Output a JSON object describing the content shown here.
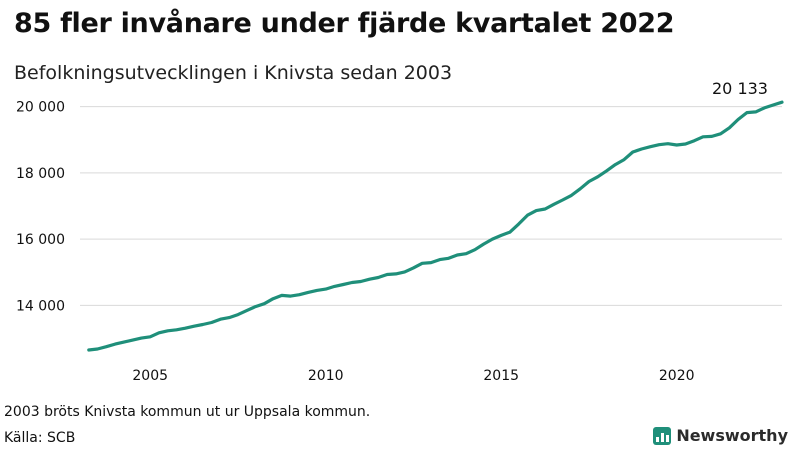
{
  "header": {
    "title": "85 fler invånare under fjärde kvartalet 2022",
    "subtitle": "Befolkningsutvecklingen i Knivsta sedan 2003"
  },
  "footer": {
    "note": "2003 bröts Knivsta kommun ut ur Uppsala kommun.",
    "source": "Källa: SCB",
    "brand": "Newsworthy"
  },
  "colors": {
    "line": "#1f8f7a",
    "grid": "#d9d9d9",
    "text": "#111111"
  },
  "chart_data": {
    "type": "line",
    "title": "85 fler invånare under fjärde kvartalet 2022",
    "subtitle": "Befolkningsutvecklingen i Knivsta sedan 2003",
    "xlabel": "",
    "ylabel": "",
    "xlim": [
      2003.0,
      2023.0
    ],
    "ylim": [
      12500,
      20200
    ],
    "grid": "horizontal",
    "legend": "none",
    "x_ticks": [
      2005,
      2010,
      2015,
      2020
    ],
    "x_tick_labels": [
      "2005",
      "2010",
      "2015",
      "2020"
    ],
    "y_ticks": [
      14000,
      16000,
      18000,
      20000
    ],
    "y_tick_labels": [
      "14 000",
      "16 000",
      "18 000",
      "20 000"
    ],
    "end_label": "20 133",
    "series": [
      {
        "x": [
          2003.25,
          2003.5,
          2003.75,
          2004.0,
          2004.25,
          2004.5,
          2004.75,
          2005.0,
          2005.25,
          2005.5,
          2005.75,
          2006.0,
          2006.25,
          2006.5,
          2006.75,
          2007.0,
          2007.25,
          2007.5,
          2007.75,
          2008.0,
          2008.25,
          2008.5,
          2008.75,
          2009.0,
          2009.25,
          2009.5,
          2009.75,
          2010.0,
          2010.25,
          2010.5,
          2010.75,
          2011.0,
          2011.25,
          2011.5,
          2011.75,
          2012.0,
          2012.25,
          2012.5,
          2012.75,
          2013.0,
          2013.25,
          2013.5,
          2013.75,
          2014.0,
          2014.25,
          2014.5,
          2014.75,
          2015.0,
          2015.25,
          2015.5,
          2015.75,
          2016.0,
          2016.25,
          2016.5,
          2016.75,
          2017.0,
          2017.25,
          2017.5,
          2017.75,
          2018.0,
          2018.25,
          2018.5,
          2018.75,
          2019.0,
          2019.25,
          2019.5,
          2019.75,
          2020.0,
          2020.25,
          2020.5,
          2020.75,
          2021.0,
          2021.25,
          2021.5,
          2021.75,
          2022.0,
          2022.25,
          2022.5,
          2022.75,
          2023.0
        ],
        "values": [
          12650,
          12680,
          12750,
          12830,
          12890,
          12950,
          13010,
          13050,
          13170,
          13230,
          13260,
          13310,
          13370,
          13420,
          13480,
          13580,
          13630,
          13720,
          13840,
          13960,
          14050,
          14200,
          14300,
          14280,
          14320,
          14390,
          14450,
          14490,
          14570,
          14630,
          14690,
          14720,
          14790,
          14840,
          14930,
          14950,
          15010,
          15130,
          15270,
          15290,
          15380,
          15420,
          15520,
          15560,
          15680,
          15850,
          16000,
          16110,
          16210,
          16460,
          16720,
          16860,
          16910,
          17050,
          17180,
          17320,
          17520,
          17740,
          17880,
          18060,
          18250,
          18400,
          18630,
          18720,
          18790,
          18850,
          18880,
          18840,
          18870,
          18970,
          19090,
          19100,
          19180,
          19360,
          19610,
          19820,
          19840,
          19960,
          20048,
          20133
        ]
      }
    ]
  }
}
